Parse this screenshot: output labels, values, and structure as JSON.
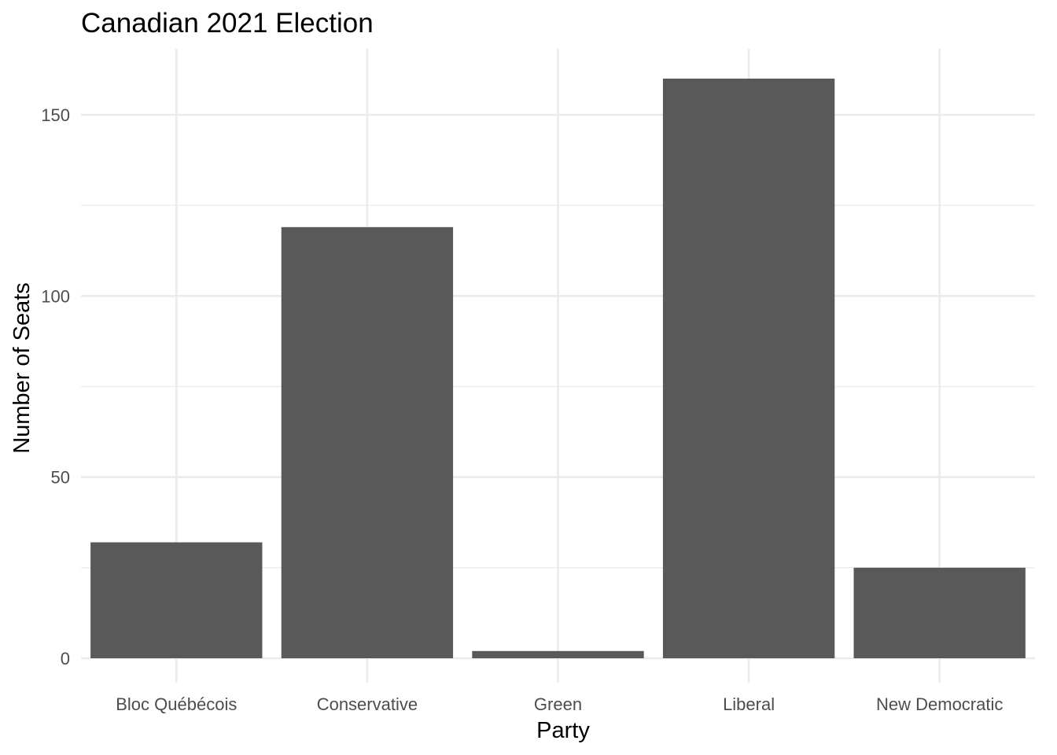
{
  "chart_data": {
    "type": "bar",
    "title": "Canadian 2021 Election",
    "xlabel": "Party",
    "ylabel": "Number of Seats",
    "categories": [
      "Bloc Québécois",
      "Conservative",
      "Green",
      "Liberal",
      "New Democratic"
    ],
    "values": [
      32,
      119,
      2,
      160,
      25
    ],
    "ylim": [
      0,
      168
    ],
    "yticks": [
      0,
      50,
      100,
      150
    ],
    "grid": true,
    "legend": "none",
    "bar_color": "#595959",
    "grid_color": "#ebebeb"
  }
}
